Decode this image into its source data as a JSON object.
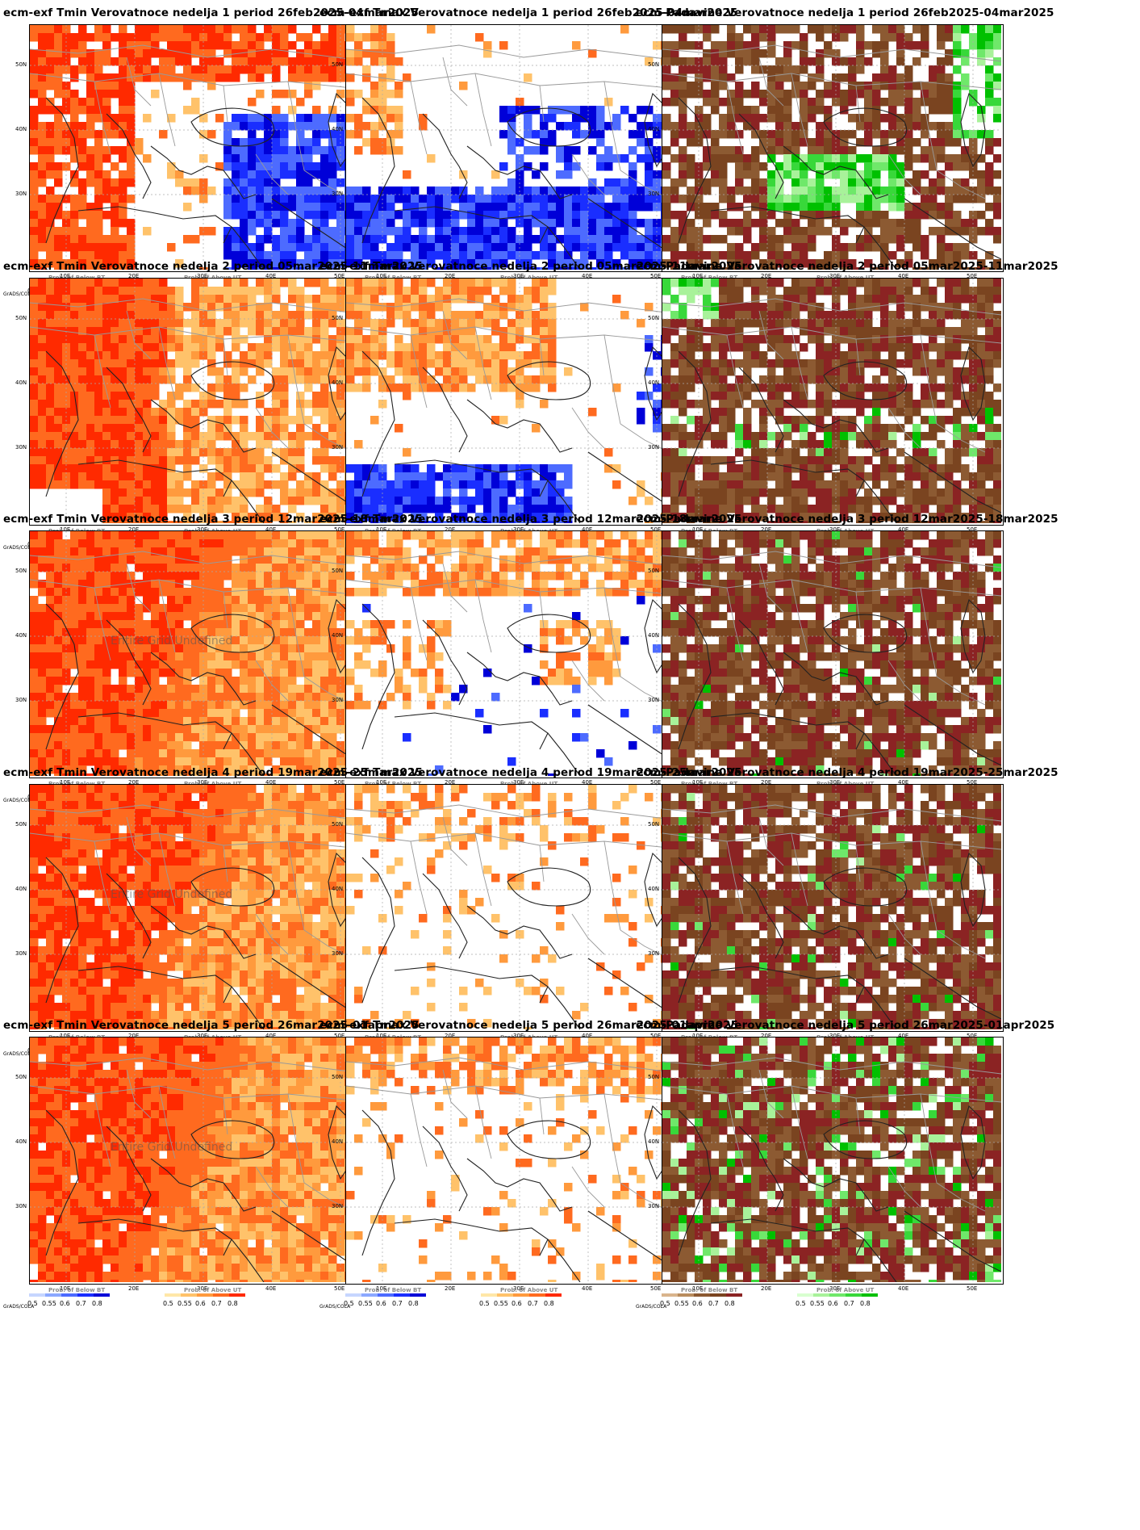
{
  "grads_label": "GrADS/COLA",
  "axes": {
    "y_ticks": [
      "50N",
      "40N",
      "30N"
    ],
    "x_ticks": [
      "10E",
      "20E",
      "30E",
      "40E",
      "50E"
    ]
  },
  "legends": {
    "below_title": "Prob. of Below BT",
    "above_title": "Prob. of Above UT",
    "ticks": [
      "0.5",
      "0.55",
      "0.6",
      "0.7",
      "0.8"
    ]
  },
  "watermark": "Entire Grid Undefined",
  "colors": {
    "below": [
      "#c6d6ff",
      "#8ba8ff",
      "#4d6bff",
      "#1a2eff",
      "#0000d8"
    ],
    "above": [
      "#ffe7a8",
      "#ffc26a",
      "#ff9a3d",
      "#ff6a1f",
      "#ff2a00"
    ],
    "dry": [
      "#d9b48c",
      "#b98c5e",
      "#8c5a32",
      "#7a4420",
      "#8b2323"
    ],
    "wet": [
      "#d8ffd0",
      "#a8f29a",
      "#6fe86a",
      "#38d83a",
      "#00c000"
    ]
  },
  "panels": [
    {
      "title": "ecm-exf Tmin Verovatnoce nedelja 1 period 26feb2025-04mar2025",
      "kind": "tmin",
      "week": 1,
      "watermark": false
    },
    {
      "title": "ecm-exf Tmax Verovatnoce nedelja 1 period 26feb2025-04mar2025",
      "kind": "tmax",
      "week": 1,
      "watermark": false
    },
    {
      "title": "ecm-Padavine Verovatnoce nedelja 1 period 26feb2025-04mar2025",
      "kind": "prec",
      "week": 1,
      "watermark": false
    },
    {
      "title": "ecm-exf Tmin Verovatnoce nedelja 2 period 05mar2025-11mar2025",
      "kind": "tmin",
      "week": 2,
      "watermark": false
    },
    {
      "title": "ecm-exf Tmax Verovatnoce nedelja 2 period 05mar2025-11mar2025",
      "kind": "tmax",
      "week": 2,
      "watermark": false
    },
    {
      "title": "ecm-Padavine Verovatnoce nedelja 2 period 05mar2025-11mar2025",
      "kind": "prec",
      "week": 2,
      "watermark": false
    },
    {
      "title": "ecm-exf Tmin Verovatnoce nedelja 3 period 12mar2025-18mar2025",
      "kind": "tmin",
      "week": 3,
      "watermark": true
    },
    {
      "title": "ecm-exf Tmax Verovatnoce nedelja 3 period 12mar2025-18mar2025",
      "kind": "tmax",
      "week": 3,
      "watermark": false
    },
    {
      "title": "ecm-Padavine Verovatnoce nedelja 3 period 12mar2025-18mar2025",
      "kind": "prec",
      "week": 3,
      "watermark": false
    },
    {
      "title": "ecm-exf Tmin Verovatnoce nedelja 4 period 19mar2025-25mar2025",
      "kind": "tmin",
      "week": 4,
      "watermark": true
    },
    {
      "title": "ecm-exf Tmax Verovatnoce nedelja 4 period 19mar2025-25mar2025",
      "kind": "tmax",
      "week": 4,
      "watermark": false
    },
    {
      "title": "ecm-Padavine Verovatnoce nedelja 4 period 19mar2025-25mar2025",
      "kind": "prec",
      "week": 4,
      "watermark": false
    },
    {
      "title": "ecm-exf Tmin Verovatnoce nedelja 5 period 26mar2025-01apr2025",
      "kind": "tmin",
      "week": 5,
      "watermark": true
    },
    {
      "title": "ecm-exf Tmax Verovatnoce nedelja 5 period 26mar2025-01apr2025",
      "kind": "tmax",
      "week": 5,
      "watermark": false
    },
    {
      "title": "ecm-Padavine Verovatnoce nedelja 5 period 26mar2025-01apr2025",
      "kind": "prec",
      "week": 5,
      "watermark": false
    }
  ]
}
